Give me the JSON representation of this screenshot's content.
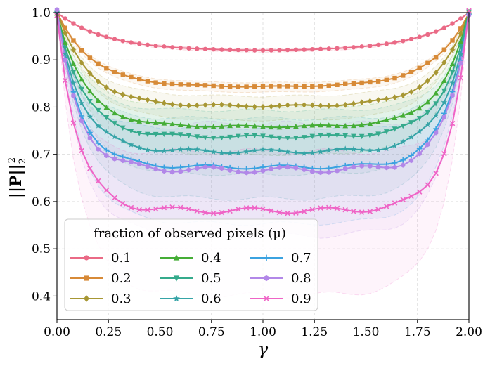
{
  "chart_data": {
    "type": "line",
    "title": "",
    "xlabel": "γ",
    "ylabel": "||P||₂²",
    "ylabel_main": "||P||",
    "ylabel_sup": "2",
    "ylabel_sub": "2",
    "xlim": [
      0.0,
      2.0
    ],
    "ylim": [
      0.35,
      1.0
    ],
    "x_ticks": [
      0.0,
      0.25,
      0.5,
      0.75,
      1.0,
      1.25,
      1.5,
      1.75,
      2.0
    ],
    "x_tick_labels": [
      "0.00",
      "0.25",
      "0.50",
      "0.75",
      "1.00",
      "1.25",
      "1.50",
      "1.75",
      "2.00"
    ],
    "y_ticks": [
      0.4,
      0.5,
      0.6,
      0.7,
      0.8,
      0.9,
      1.0
    ],
    "y_tick_labels": [
      "0.4",
      "0.5",
      "0.6",
      "0.7",
      "0.8",
      "0.9",
      "1.0"
    ],
    "grid": true,
    "legend": {
      "title": "fraction of observed pixels (μ)",
      "placement": "lower-left",
      "columns": 3
    },
    "n_points": 51,
    "series": [
      {
        "name": "0.1",
        "color": "#ea6a86",
        "marker": "circle",
        "plateau": 0.919,
        "sharpness": 4.2,
        "band": 0.004,
        "wiggle": 0.0
      },
      {
        "name": "0.2",
        "color": "#d78a37",
        "marker": "square",
        "plateau": 0.843,
        "sharpness": 5.8,
        "band": 0.012,
        "wiggle": 0.001
      },
      {
        "name": "0.3",
        "color": "#a79734",
        "marker": "diamond",
        "plateau": 0.802,
        "sharpness": 6.5,
        "band": 0.03,
        "wiggle": 0.002
      },
      {
        "name": "0.4",
        "color": "#45ad36",
        "marker": "triangle-up",
        "plateau": 0.759,
        "sharpness": 7.5,
        "band": 0.06,
        "wiggle": 0.002
      },
      {
        "name": "0.5",
        "color": "#35aa8c",
        "marker": "triangle-down",
        "plateau": 0.737,
        "sharpness": 8.0,
        "band": 0.08,
        "wiggle": 0.003
      },
      {
        "name": "0.6",
        "color": "#36a4a7",
        "marker": "star",
        "plateau": 0.706,
        "sharpness": 8.5,
        "band": 0.1,
        "wiggle": 0.004
      },
      {
        "name": "0.7",
        "color": "#3ba2e0",
        "marker": "plus",
        "plateau": 0.673,
        "sharpness": 9.0,
        "band": 0.12,
        "wiggle": 0.004
      },
      {
        "name": "0.8",
        "color": "#b287e8",
        "marker": "hex",
        "plateau": 0.667,
        "sharpness": 9.5,
        "band": 0.14,
        "wiggle": 0.006
      },
      {
        "name": "0.9",
        "color": "#ef64c6",
        "marker": "x",
        "plateau": 0.581,
        "sharpness": 10.0,
        "band": 0.18,
        "wiggle": 0.006
      }
    ]
  }
}
